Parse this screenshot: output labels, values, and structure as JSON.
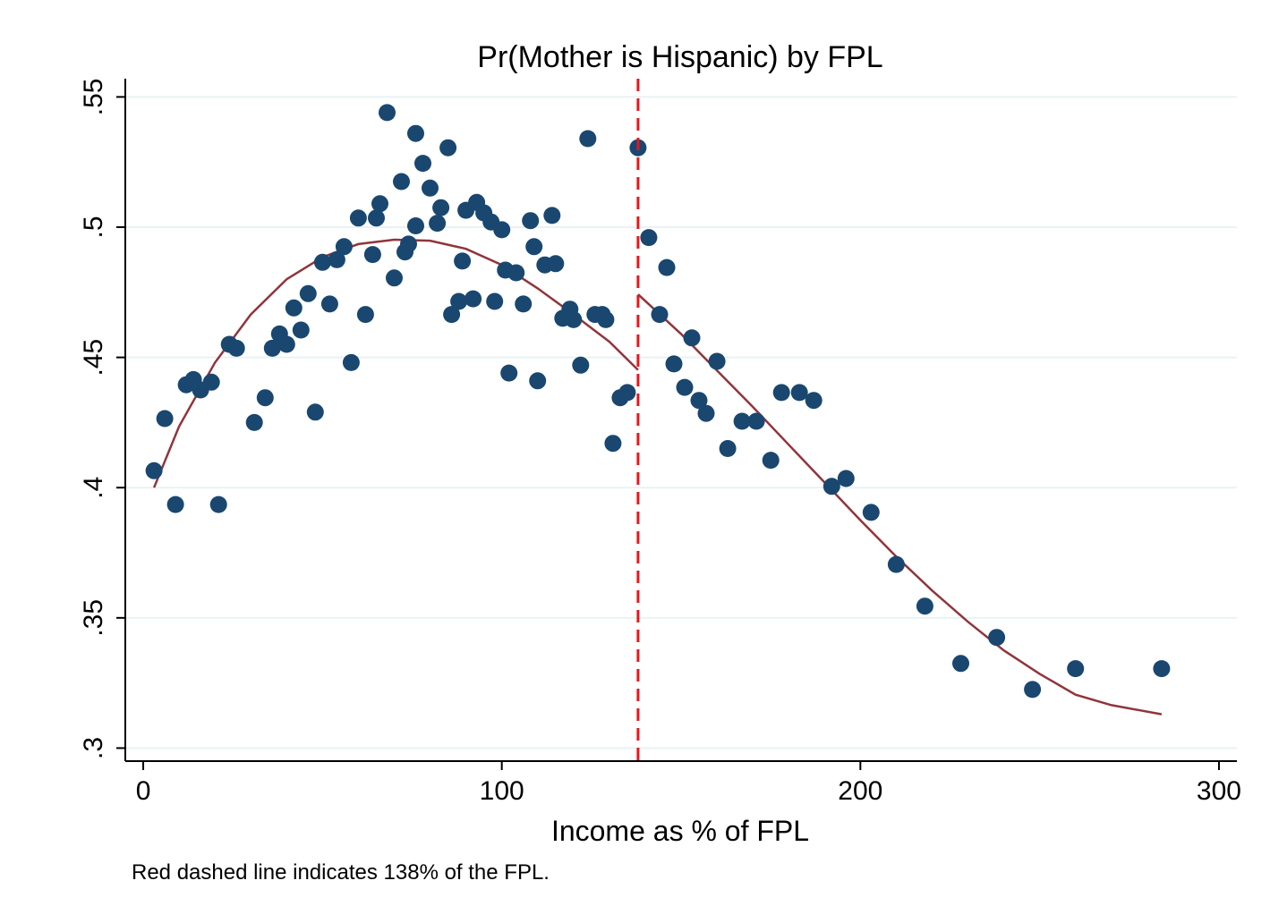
{
  "chart_data": {
    "type": "scatter",
    "title": "Pr(Mother is Hispanic) by FPL",
    "xlabel": "Income as % of FPL",
    "ylabel": "",
    "note": "Red dashed line indicates 138% of the FPL.",
    "xlim": [
      -5,
      305
    ],
    "ylim": [
      0.295,
      0.557
    ],
    "x_ticks": [
      0,
      100,
      200,
      300
    ],
    "x_tick_labels": [
      "0",
      "100",
      "200",
      "300"
    ],
    "y_ticks": [
      0.3,
      0.35,
      0.4,
      0.45,
      0.5,
      0.55
    ],
    "y_tick_labels": [
      ".3",
      ".35",
      ".4",
      ".45",
      ".5",
      ".55"
    ],
    "grid": true,
    "threshold_x": 138,
    "colors": {
      "points": "#1a476f",
      "fit": "#90353b",
      "threshold": "#e8161c",
      "grid": "#eaf2f3"
    },
    "series": [
      {
        "type": "scatter",
        "x": [
          3,
          6,
          9,
          12,
          14,
          16,
          19,
          21,
          24,
          26,
          31,
          34,
          36,
          38,
          40,
          42,
          44,
          46,
          48,
          50,
          52,
          54,
          56,
          58,
          60,
          62,
          64,
          65,
          66,
          68,
          70,
          72,
          73,
          74,
          76,
          76,
          78,
          80,
          82,
          83,
          85,
          86,
          88,
          89,
          90,
          92,
          93,
          95,
          97,
          98,
          100,
          101,
          102,
          104,
          106,
          108,
          109,
          110,
          112,
          114,
          115,
          117,
          119,
          120,
          122,
          124,
          126,
          128,
          129,
          131,
          133,
          135,
          138,
          141,
          144,
          146,
          148,
          151,
          153,
          155,
          157,
          160,
          163,
          167,
          171,
          175,
          178,
          183,
          187,
          192,
          196,
          203,
          210,
          218,
          228,
          238,
          248,
          260,
          284
        ],
        "y": [
          0.4065,
          0.4265,
          0.3935,
          0.4395,
          0.4415,
          0.4375,
          0.4405,
          0.3935,
          0.455,
          0.4535,
          0.425,
          0.4345,
          0.4535,
          0.459,
          0.455,
          0.469,
          0.4605,
          0.4745,
          0.429,
          0.4865,
          0.4705,
          0.4875,
          0.4925,
          0.448,
          0.5035,
          0.4665,
          0.4895,
          0.5035,
          0.509,
          0.544,
          0.4805,
          0.5175,
          0.4905,
          0.4935,
          0.536,
          0.5005,
          0.5245,
          0.515,
          0.5015,
          0.5075,
          0.5305,
          0.4665,
          0.4715,
          0.487,
          0.5065,
          0.4725,
          0.5095,
          0.5055,
          0.502,
          0.4715,
          0.499,
          0.4835,
          0.444,
          0.4825,
          0.4705,
          0.5025,
          0.4925,
          0.441,
          0.4855,
          0.5045,
          0.486,
          0.465,
          0.4685,
          0.4645,
          0.447,
          0.534,
          0.4665,
          0.4665,
          0.4645,
          0.417,
          0.4345,
          0.4365,
          0.5305,
          0.496,
          0.4665,
          0.4845,
          0.4475,
          0.4385,
          0.4575,
          0.4335,
          0.4285,
          0.4485,
          0.415,
          0.4255,
          0.4255,
          0.4105,
          0.4365,
          0.4365,
          0.4335,
          0.4005,
          0.4035,
          0.3905,
          0.3705,
          0.3545,
          0.3325,
          0.3425,
          0.3225,
          0.3305,
          0.3305
        ]
      },
      {
        "type": "line",
        "name": "fit below threshold",
        "x": [
          3,
          10,
          20,
          30,
          40,
          50,
          60,
          70,
          80,
          90,
          100,
          110,
          120,
          130,
          138
        ],
        "y": [
          0.4,
          0.4235,
          0.448,
          0.4665,
          0.48,
          0.4885,
          0.4935,
          0.4952,
          0.4948,
          0.4917,
          0.4855,
          0.4765,
          0.4665,
          0.456,
          0.4452
        ]
      },
      {
        "type": "line",
        "name": "fit above threshold",
        "x": [
          138,
          150,
          160,
          170,
          180,
          190,
          200,
          210,
          220,
          230,
          240,
          250,
          260,
          270,
          284
        ],
        "y": [
          0.4742,
          0.459,
          0.445,
          0.431,
          0.4165,
          0.402,
          0.3875,
          0.3735,
          0.3605,
          0.3485,
          0.3375,
          0.3285,
          0.3205,
          0.3165,
          0.313
        ]
      }
    ]
  }
}
